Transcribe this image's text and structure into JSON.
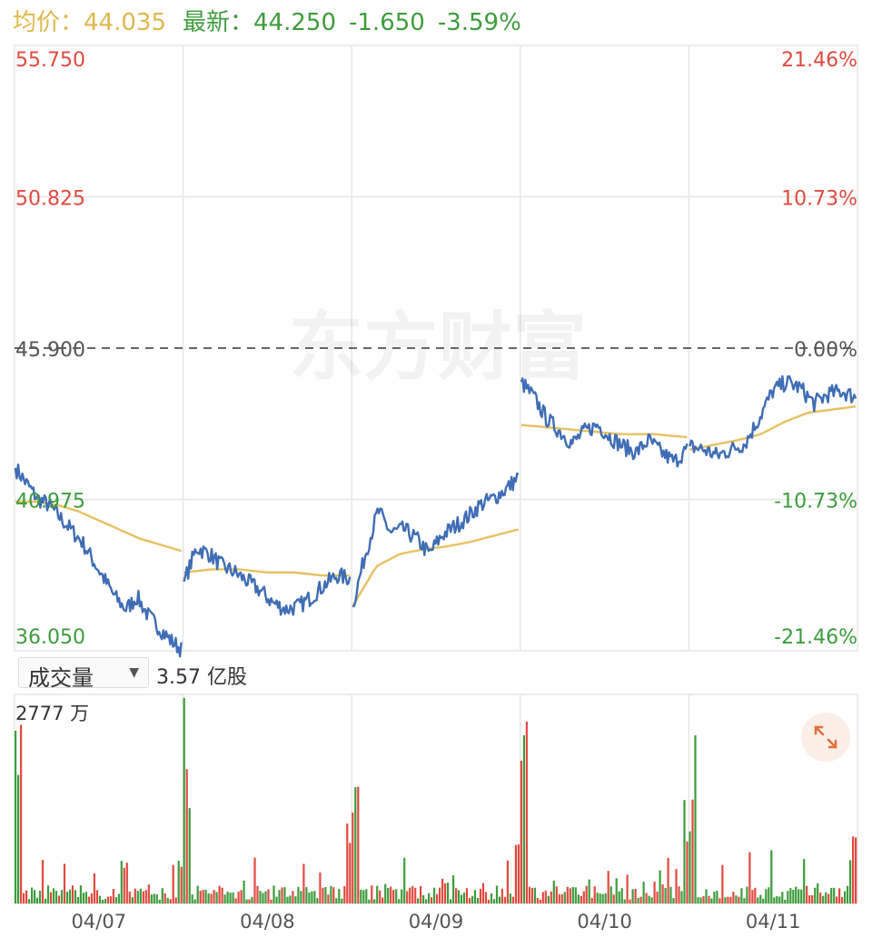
{
  "header": {
    "avg_label": "均价：",
    "avg_value": "44.035",
    "latest_label": "最新：",
    "latest_value": "44.250",
    "change": "-1.650",
    "change_pct": "-3.59%"
  },
  "colors": {
    "price_line": "#3f6db5",
    "avg_line": "#e8c060",
    "up": "#e04a3f",
    "down": "#3d9c3c",
    "avg_text": "#e0b74b",
    "grid": "#e6e6e6"
  },
  "watermark": "东方财富",
  "volume_control": {
    "selector_label": "成交量",
    "total": "3.57 亿股",
    "max_label": "2777 万"
  },
  "expand_icon": "expand-arrows-icon",
  "chart_data": {
    "type": "line",
    "days": [
      "04/07",
      "04/08",
      "04/09",
      "04/10",
      "04/11"
    ],
    "prev_close": 45.9,
    "ylim": [
      36.05,
      55.75
    ],
    "y_ticks_left": [
      "55.750",
      "50.825",
      "45.900",
      "40.975",
      "36.050"
    ],
    "y_ticks_right": [
      "21.46%",
      "10.73%",
      "0.00%",
      "-10.73%",
      "-21.46%"
    ],
    "series": [
      {
        "key": "price",
        "values": [
          [
            42.0,
            41.5,
            41.0,
            40.8,
            40.4,
            40.0,
            39.6,
            39.0,
            38.4,
            37.8,
            37.4,
            37.8,
            37.2,
            36.8,
            36.4,
            36.1
          ],
          [
            38.3,
            39.4,
            39.2,
            38.8,
            38.6,
            38.3,
            38.0,
            37.6,
            37.4,
            37.5,
            37.8,
            38.2,
            38.5,
            38.4
          ],
          [
            37.5,
            39.2,
            40.6,
            39.9,
            40.0,
            39.7,
            39.2,
            39.8,
            40.1,
            40.4,
            40.8,
            41.0,
            41.3,
            41.7
          ],
          [
            44.8,
            44.3,
            43.6,
            43.2,
            42.8,
            43.2,
            43.4,
            43.0,
            42.7,
            42.5,
            42.9,
            42.5,
            42.2,
            42.6
          ],
          [
            42.7,
            42.6,
            42.4,
            42.6,
            42.8,
            43.6,
            44.5,
            44.8,
            44.6,
            44.1,
            44.4,
            44.5,
            44.3
          ]
        ]
      },
      {
        "key": "avg",
        "values": [
          [
            40.9,
            40.9,
            40.8,
            40.6,
            40.3,
            40.0,
            39.7,
            39.5,
            39.3
          ],
          [
            38.6,
            38.7,
            38.7,
            38.6,
            38.6,
            38.5,
            38.5
          ],
          [
            37.5,
            38.8,
            39.2,
            39.35,
            39.45,
            39.6,
            39.8,
            40.0
          ],
          [
            43.4,
            43.3,
            43.2,
            43.1,
            43.1,
            43.0
          ],
          [
            42.6,
            42.75,
            42.9,
            43.1,
            43.5,
            43.8,
            43.9,
            44.0
          ]
        ]
      }
    ],
    "volume_max": 2777,
    "volume_unit": "万"
  }
}
